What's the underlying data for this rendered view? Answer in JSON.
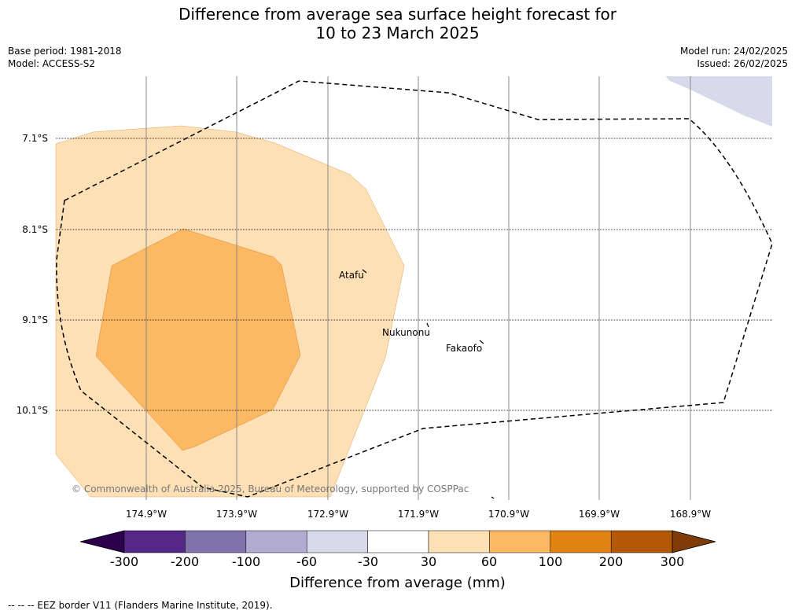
{
  "title_line1": "Difference from average sea surface height forecast for",
  "title_line2": "10 to 23 March 2025",
  "base_period": "Base period: 1981-2018",
  "model": "Model: ACCESS-S2",
  "model_run": "Model run: 24/02/2025",
  "issued": "Issued: 26/02/2025",
  "lat_labels": [
    "7.1°S",
    "8.1°S",
    "9.1°S",
    "10.1°S"
  ],
  "lon_labels": [
    "174.9°W",
    "173.9°W",
    "172.9°W",
    "171.9°W",
    "170.9°W",
    "169.9°W",
    "168.9°W"
  ],
  "places": {
    "atafu": "Atafu",
    "nukunonu": "Nukunonu",
    "fakaofo": "Fakaofo"
  },
  "copyright": "© Commonwealth of Australia 2025, Bureau of Meteorology, supported by COSPPac",
  "colorbar": {
    "ticks": [
      "-300",
      "-200",
      "-100",
      "-60",
      "-30",
      "30",
      "60",
      "100",
      "200",
      "300"
    ],
    "colors": [
      "#2d004b",
      "#542788",
      "#8073ac",
      "#b2abd2",
      "#d8daeb",
      "#ffffff",
      "#fee0b6",
      "#fdb863",
      "#e08214",
      "#b35806",
      "#7f3b08"
    ],
    "title": "Difference from average (mm)"
  },
  "legend": {
    "eez": "-- -- -- EEZ border V11 (Flanders Marine Institute, 2019)."
  }
}
